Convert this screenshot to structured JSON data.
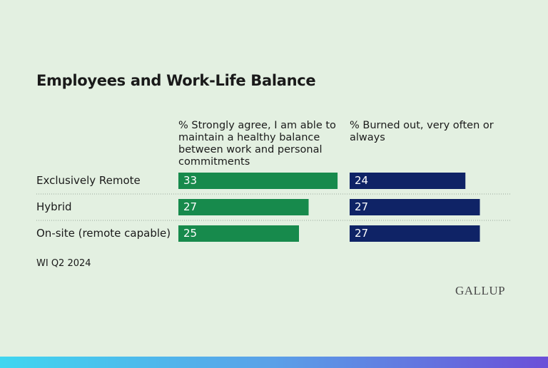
{
  "chart_data": {
    "type": "bar",
    "title": "Employees and Work-Life Balance",
    "categories": [
      "Exclusively Remote",
      "Hybrid",
      "On-site (remote capable)"
    ],
    "series": [
      {
        "name": "% Strongly agree, I am able to maintain a healthy balance between work and personal commitments",
        "color": "#178a4c",
        "values": [
          33,
          27,
          25
        ]
      },
      {
        "name": "% Burned out, very often or always",
        "color": "#0f2366",
        "values": [
          24,
          27,
          27
        ]
      }
    ],
    "note": "WI Q2 2024",
    "logo": "GALLUP"
  }
}
